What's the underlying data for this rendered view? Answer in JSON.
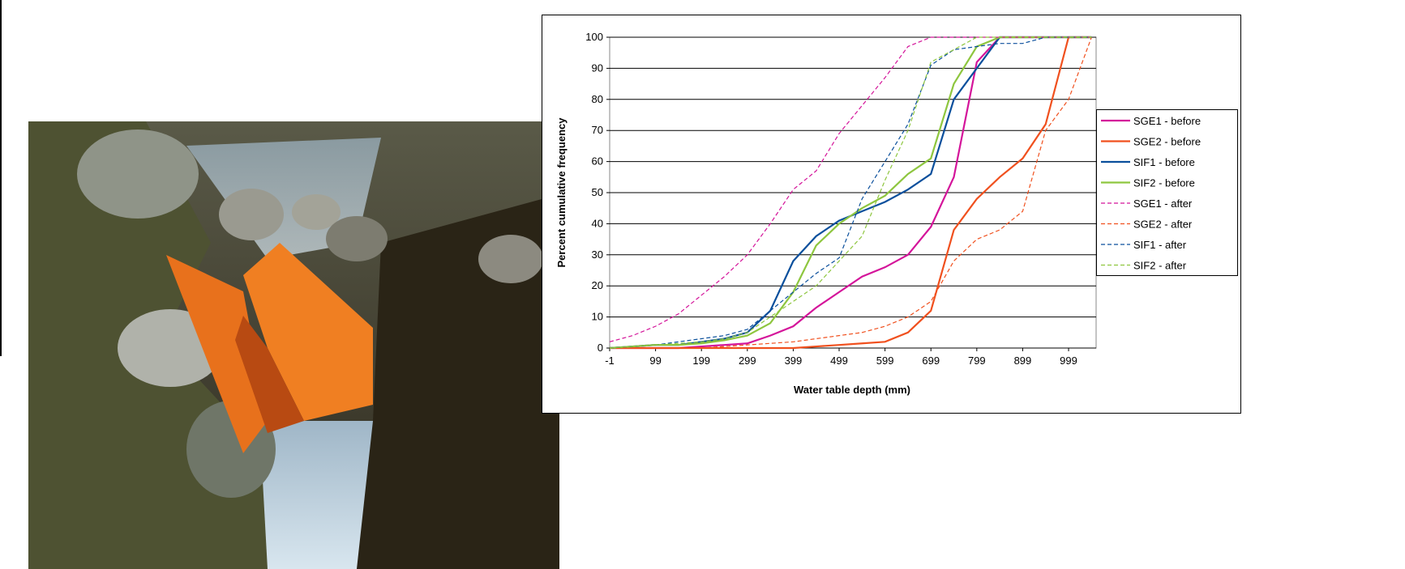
{
  "chart_data": {
    "type": "line",
    "xlabel": "Water table depth (mm)",
    "ylabel": "Percent cumulative frequency",
    "x": [
      -1,
      49,
      99,
      149,
      199,
      249,
      299,
      349,
      399,
      449,
      499,
      549,
      599,
      649,
      699,
      749,
      799,
      849,
      899,
      949,
      999,
      1049
    ],
    "xlim": [
      -1,
      1059
    ],
    "xticks": [
      -1,
      99,
      199,
      299,
      399,
      499,
      599,
      699,
      799,
      899,
      999
    ],
    "ylim": [
      0,
      100
    ],
    "yticks": [
      0,
      10,
      20,
      30,
      40,
      50,
      60,
      70,
      80,
      90,
      100
    ],
    "grid": true,
    "legend": "right",
    "series": [
      {
        "name": "SGE1 - before",
        "color": "#d4149a",
        "linestyle": "solid",
        "values": [
          0,
          0,
          0,
          0,
          0.5,
          1,
          1.5,
          4,
          7,
          13,
          18,
          23,
          26,
          30,
          39,
          55,
          92,
          100,
          100,
          100,
          100,
          100
        ]
      },
      {
        "name": "SGE2 - before",
        "color": "#f0501e",
        "linestyle": "solid",
        "values": [
          0,
          0,
          0,
          0,
          0,
          0,
          0,
          0,
          0,
          0.5,
          1,
          1.5,
          2,
          5,
          12,
          38,
          48,
          55,
          61,
          72,
          100,
          100
        ]
      },
      {
        "name": "SIF1 - before",
        "color": "#0a4f9c",
        "linestyle": "solid",
        "values": [
          0,
          0.5,
          1,
          1,
          2,
          3,
          5,
          12,
          28,
          36,
          41,
          44,
          47,
          51,
          56,
          80,
          90,
          100,
          100,
          100,
          100,
          100
        ]
      },
      {
        "name": "SIF2 - before",
        "color": "#8ec63f",
        "linestyle": "solid",
        "values": [
          0,
          0.5,
          1,
          1,
          1.5,
          2.5,
          4,
          8,
          18,
          33,
          40,
          45,
          49,
          56,
          61,
          85,
          97,
          100,
          100,
          100,
          100,
          100
        ]
      },
      {
        "name": "SGE1 - after",
        "color": "#d4149a",
        "linestyle": "dashed",
        "values": [
          2,
          4,
          7,
          11,
          17,
          23,
          30,
          40,
          51,
          57,
          69,
          78,
          87,
          97,
          100,
          100,
          100,
          100,
          100,
          100,
          100,
          100
        ]
      },
      {
        "name": "SGE2 - after",
        "color": "#f0501e",
        "linestyle": "dashed",
        "values": [
          0,
          0,
          0,
          0,
          0,
          0.5,
          1,
          1.5,
          2,
          3,
          4,
          5,
          7,
          10,
          15,
          28,
          35,
          38,
          44,
          70,
          80,
          100
        ]
      },
      {
        "name": "SIF1 - after",
        "color": "#0a4f9c",
        "linestyle": "dashed",
        "values": [
          0,
          0.5,
          1,
          2,
          3,
          4,
          6,
          12,
          18,
          24,
          29,
          48,
          60,
          72,
          91,
          96,
          97,
          98,
          98,
          100,
          100,
          100
        ]
      },
      {
        "name": "SIF2 - after",
        "color": "#8ec63f",
        "linestyle": "dashed",
        "values": [
          0,
          0.5,
          1,
          1.5,
          2,
          3,
          5,
          10,
          15,
          20,
          28,
          36,
          54,
          70,
          92,
          96,
          100,
          100,
          100,
          100,
          100,
          100
        ]
      }
    ]
  }
}
